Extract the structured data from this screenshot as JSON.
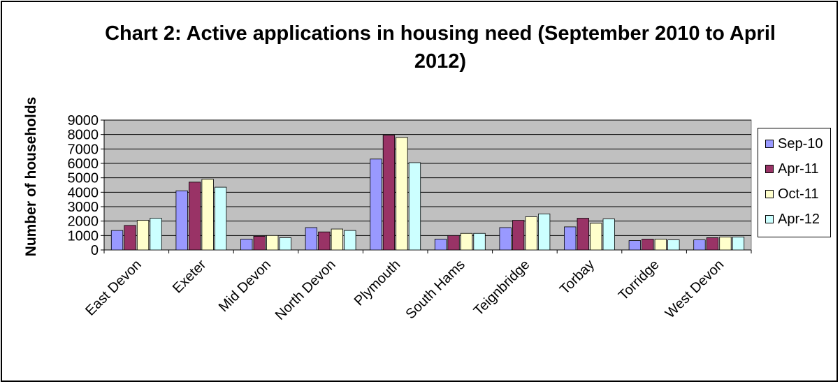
{
  "chart_data": {
    "type": "bar",
    "title": "Chart 2: Active applications in housing need (September 2010 to April 2012)",
    "xlabel": "",
    "ylabel": "Number of households",
    "ylim": [
      0,
      9000
    ],
    "yticks": [
      0,
      1000,
      2000,
      3000,
      4000,
      5000,
      6000,
      7000,
      8000,
      9000
    ],
    "grid": true,
    "legend_position": "right",
    "categories": [
      "East Devon",
      "Exeter",
      "Mid Devon",
      "North Devon",
      "Plymouth",
      "South Hams",
      "Teignbridge",
      "Torbay",
      "Torridge",
      "West Devon"
    ],
    "series": [
      {
        "name": "Sep-10",
        "color": "#9999ff",
        "values": [
          1350,
          4100,
          750,
          1550,
          6300,
          750,
          1550,
          1600,
          650,
          700
        ]
      },
      {
        "name": "Apr-11",
        "color": "#993366",
        "values": [
          1700,
          4700,
          950,
          1250,
          7950,
          1000,
          2050,
          2200,
          750,
          850
        ]
      },
      {
        "name": "Oct-11",
        "color": "#ffffcc",
        "values": [
          2050,
          4900,
          1000,
          1450,
          7800,
          1150,
          2300,
          1850,
          750,
          900
        ]
      },
      {
        "name": "Apr-12",
        "color": "#ccffff",
        "values": [
          2200,
          4350,
          850,
          1350,
          6050,
          1150,
          2500,
          2150,
          700,
          900
        ]
      }
    ],
    "plot_background": "#c0c0c0"
  }
}
